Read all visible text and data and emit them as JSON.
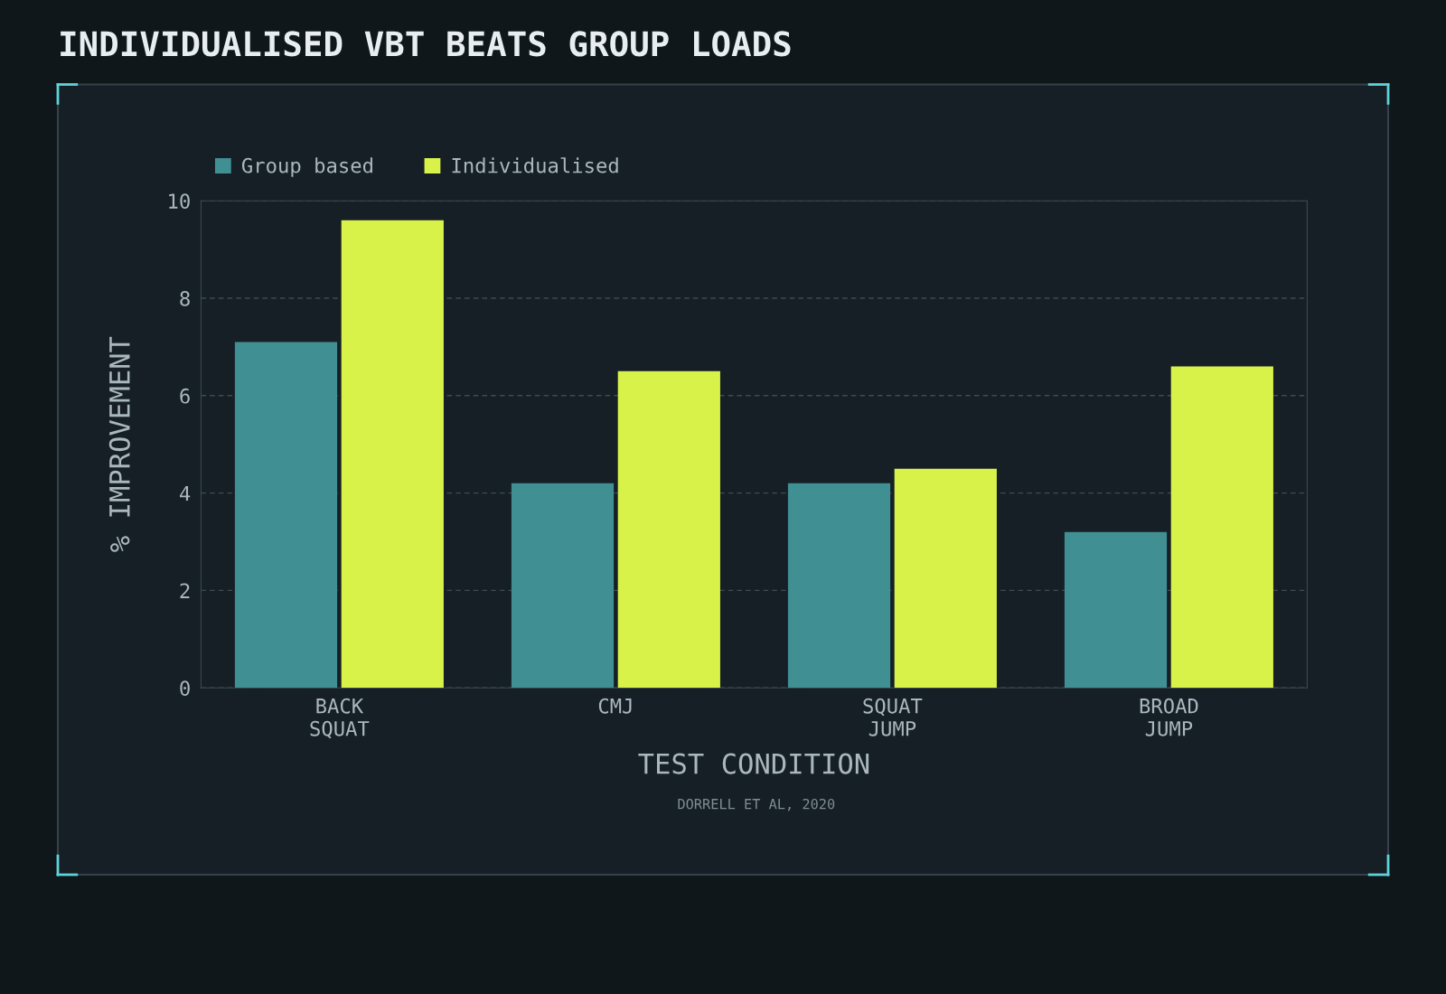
{
  "chart_data": {
    "type": "bar",
    "title": "INDIVIDUALISED VBT BEATS GROUP LOADS",
    "xlabel": "TEST CONDITION",
    "ylabel": "% IMPROVEMENT",
    "categories": [
      "BACK\nSQUAT",
      "CMJ",
      "SQUAT\nJUMP",
      "BROAD\nJUMP"
    ],
    "series": [
      {
        "name": "Group based",
        "color": "#3f8f93",
        "values": [
          7.1,
          4.2,
          4.2,
          3.2
        ]
      },
      {
        "name": "Individualised",
        "color": "#d9f24a",
        "values": [
          9.6,
          6.5,
          4.5,
          6.6
        ]
      }
    ],
    "ylim": [
      0,
      10
    ],
    "yticks": [
      0,
      2,
      4,
      6,
      8,
      10
    ],
    "grid": "y",
    "legend": "top left",
    "annotations": [
      "DORRELL ET AL, 2020"
    ]
  }
}
